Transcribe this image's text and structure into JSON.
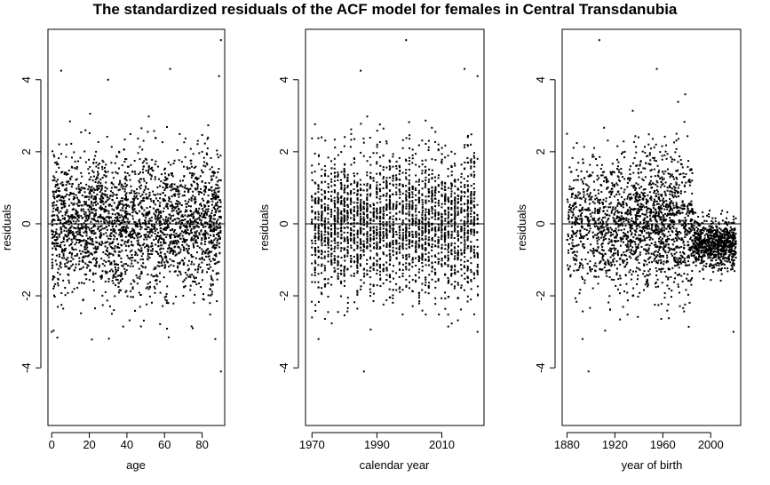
{
  "title": "The standardized residuals of the ACF model for females in Central Transdanubia",
  "chart_data": [
    {
      "type": "scatter",
      "xlabel": "age",
      "ylabel": "residuals",
      "xlim": [
        -2,
        92
      ],
      "ylim": [
        -5.6,
        5.4
      ],
      "xticks": [
        0,
        20,
        40,
        60,
        80
      ],
      "yticks": [
        -4,
        -2,
        0,
        2,
        4
      ],
      "reference_line_y": 0,
      "x_range": [
        0,
        90
      ],
      "n_points": 2600,
      "residual_sd_approx": 0.95,
      "notable_points": [
        [
          5,
          4.25
        ],
        [
          30,
          4.0
        ],
        [
          63,
          4.3
        ],
        [
          90,
          5.1
        ],
        [
          89,
          4.1
        ],
        [
          90,
          -4.1
        ],
        [
          0,
          -3.0
        ],
        [
          87,
          -3.2
        ],
        [
          75,
          -2.9
        ]
      ]
    },
    {
      "type": "scatter",
      "xlabel": "calendar year",
      "ylabel": "residuals",
      "xlim": [
        1968,
        2023
      ],
      "ylim": [
        -5.6,
        5.4
      ],
      "xticks": [
        1970,
        1990,
        2010
      ],
      "yticks": [
        -4,
        -2,
        0,
        2,
        4
      ],
      "reference_line_y": 0,
      "x_range": [
        1970,
        2021
      ],
      "n_points": 2600,
      "residual_sd_approx": 0.95,
      "notable_points": [
        [
          1999,
          5.1
        ],
        [
          1985,
          4.25
        ],
        [
          1986,
          -4.1
        ],
        [
          2017,
          4.3
        ],
        [
          2021,
          4.1
        ],
        [
          2021,
          -3.0
        ],
        [
          1972,
          -3.2
        ],
        [
          1970,
          -2.6
        ]
      ]
    },
    {
      "type": "scatter",
      "xlabel": "year of birth",
      "ylabel": "residuals",
      "xlim": [
        1876,
        2025
      ],
      "ylim": [
        -5.6,
        5.4
      ],
      "xticks": [
        1880,
        1920,
        1960,
        2000
      ],
      "yticks": [
        -4,
        -2,
        0,
        2,
        4
      ],
      "reference_line_y": 0,
      "x_range": [
        1880,
        2021
      ],
      "n_points": 2600,
      "residual_sd_approx": 0.95,
      "notable_points": [
        [
          1907,
          5.1
        ],
        [
          1955,
          4.3
        ],
        [
          1898,
          -4.1
        ],
        [
          2019,
          -3.0
        ],
        [
          1880,
          2.5
        ],
        [
          1893,
          -3.2
        ]
      ]
    }
  ]
}
